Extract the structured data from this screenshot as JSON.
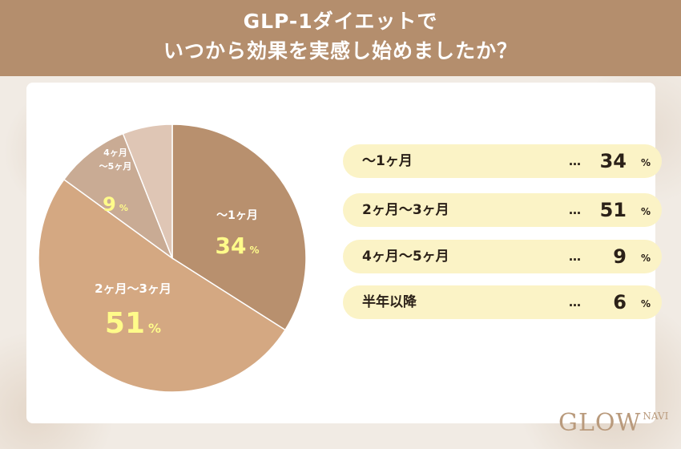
{
  "header": {
    "title_line1": "GLP-1ダイエットで",
    "title_line2": "いつから効果を実感し始めましたか？"
  },
  "chart_data": {
    "type": "pie",
    "title": "GLP-1ダイエットでいつから効果を実感し始めましたか？",
    "unit": "%",
    "start": "12 o'clock",
    "direction": "clockwise",
    "slices": [
      {
        "label": "〜1ヶ月",
        "label_lines": [
          "〜1ヶ月"
        ],
        "value": 34,
        "color": "#b8906e"
      },
      {
        "label": "2ヶ月〜3ヶ月",
        "label_lines": [
          "2ヶ月〜3ヶ月"
        ],
        "value": 51,
        "color": "#d4a882"
      },
      {
        "label": "4ヶ月〜5ヶ月",
        "label_lines": [
          "4ヶ月",
          "〜5ヶ月"
        ],
        "value": 9,
        "color": "#c9ab94"
      },
      {
        "label": "半年以降",
        "label_lines": [],
        "value": 6,
        "color": "#dfc6b5"
      }
    ],
    "value_label_color": "#fffb8a"
  },
  "legend": {
    "dots": "…",
    "percent_sign": "%",
    "items": [
      {
        "label": "〜1ヶ月",
        "value": "34"
      },
      {
        "label": "2ヶ月〜3ヶ月",
        "value": "51"
      },
      {
        "label": "4ヶ月〜5ヶ月",
        "value": "9"
      },
      {
        "label": "半年以降",
        "value": "6"
      }
    ]
  },
  "brand": {
    "logo_main": "GLOW",
    "logo_sub": "NAVI"
  }
}
